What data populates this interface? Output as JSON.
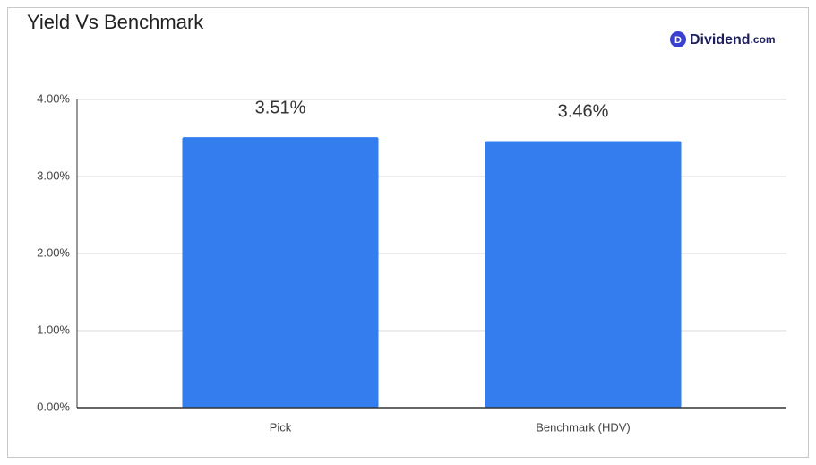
{
  "chart_data": {
    "type": "bar",
    "title": "Yield Vs Benchmark",
    "logo": {
      "icon": "D",
      "name": "Dividend",
      "suffix": ".com"
    },
    "categories": [
      "Pick",
      "Benchmark (HDV)"
    ],
    "values": [
      3.51,
      3.46
    ],
    "value_labels": [
      "3.51%",
      "3.46%"
    ],
    "color": "#337def",
    "ylim": [
      0,
      4
    ],
    "yticks": [
      {
        "value": 0,
        "label": "0.00%"
      },
      {
        "value": 1,
        "label": "1.00%"
      },
      {
        "value": 2,
        "label": "2.00%"
      },
      {
        "value": 3,
        "label": "3.00%"
      },
      {
        "value": 4,
        "label": "4.00%"
      }
    ],
    "grid": true
  }
}
